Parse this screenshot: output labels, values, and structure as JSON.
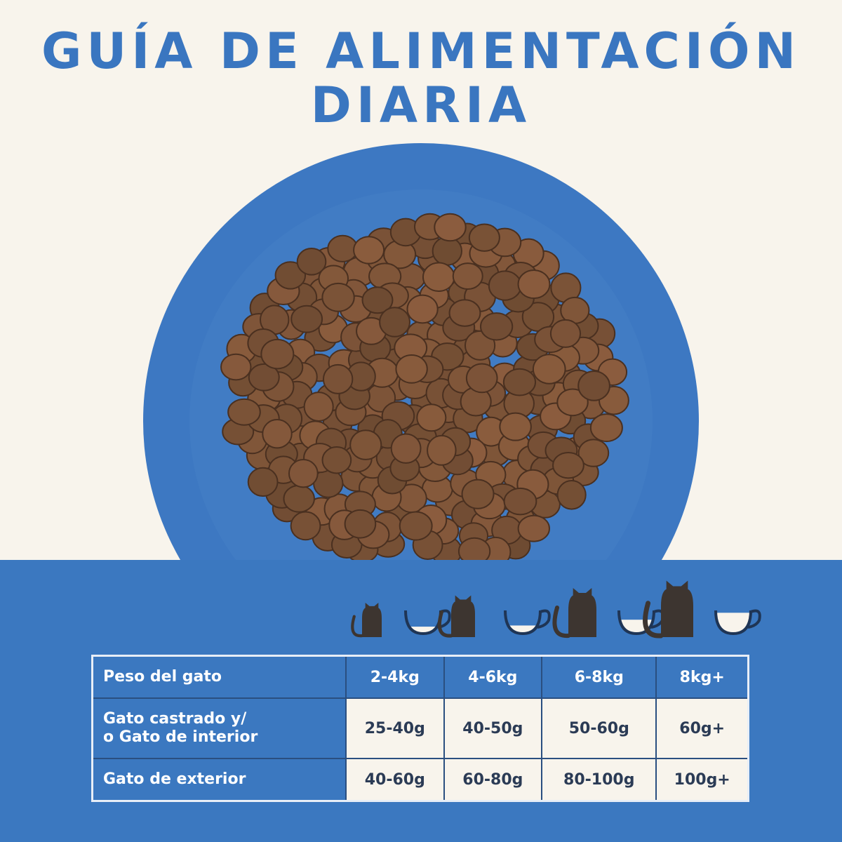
{
  "title": {
    "line1": "GUÍA DE ALIMENTACIÓN",
    "line2": "DIARIA"
  },
  "colors": {
    "brand_blue": "#3b78c0",
    "background": "#f8f4ec",
    "cat": "#3d3530"
  },
  "icons": [
    "cat-small-with-small-bowl",
    "cat-medium-with-bowl",
    "cat-large-with-bowl",
    "cat-xlarge-with-full-bowl"
  ],
  "table": {
    "header": {
      "label": "Peso del gato",
      "columns": [
        "2-4kg",
        "4-6kg",
        "6-8kg",
        "8kg+"
      ]
    },
    "rows": [
      {
        "label_line1": "Gato castrado y/",
        "label_line2": "o Gato de interior",
        "values": [
          "25-40g",
          "40-50g",
          "50-60g",
          "60g+"
        ]
      },
      {
        "label_line1": "Gato de exterior",
        "values": [
          "40-60g",
          "60-80g",
          "80-100g",
          "100g+"
        ]
      }
    ]
  }
}
